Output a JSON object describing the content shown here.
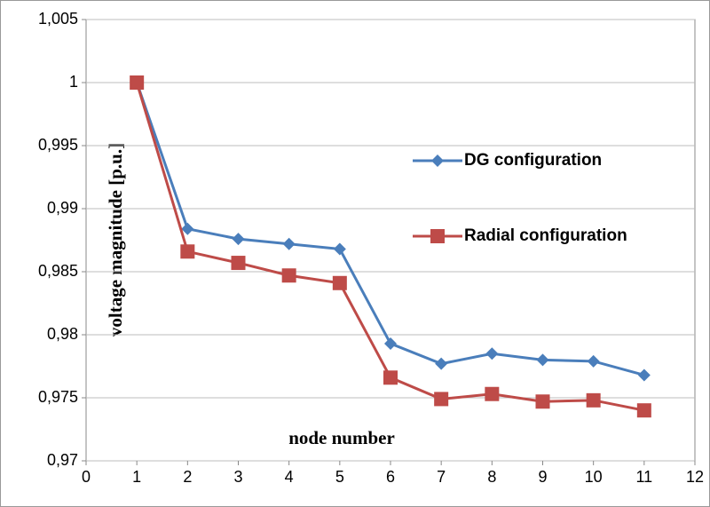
{
  "chart_data": {
    "type": "line",
    "x_label": "node number",
    "y_label": "voltage magnitude [p.u.]",
    "x": [
      1,
      2,
      3,
      4,
      5,
      6,
      7,
      8,
      9,
      10,
      11
    ],
    "series": [
      {
        "name": "DG configuration",
        "color": "#4a7ebb",
        "marker": "diamond",
        "values": [
          1,
          0.9884,
          0.9876,
          0.9872,
          0.9868,
          0.9793,
          0.9777,
          0.9785,
          0.978,
          0.9779,
          0.9768
        ]
      },
      {
        "name": "Radial configuration",
        "color": "#be4b48",
        "marker": "square",
        "values": [
          1,
          0.9866,
          0.9857,
          0.9847,
          0.9841,
          0.9766,
          0.9749,
          0.9753,
          0.9747,
          0.9748,
          0.974
        ]
      }
    ],
    "xlim": [
      0,
      12
    ],
    "xticks": [
      0,
      1,
      2,
      3,
      4,
      5,
      6,
      7,
      8,
      9,
      10,
      11,
      12
    ],
    "ylim": [
      0.97,
      1.005
    ],
    "yticks": [
      {
        "value": 0.97,
        "label": "0,97"
      },
      {
        "value": 0.975,
        "label": "0,975"
      },
      {
        "value": 0.98,
        "label": "0,98"
      },
      {
        "value": 0.985,
        "label": "0,985"
      },
      {
        "value": 0.99,
        "label": "0,99"
      },
      {
        "value": 0.995,
        "label": "0,995"
      },
      1,
      {
        "value": 1.005,
        "label": "1,005"
      }
    ],
    "grid": true,
    "legend": "right"
  }
}
